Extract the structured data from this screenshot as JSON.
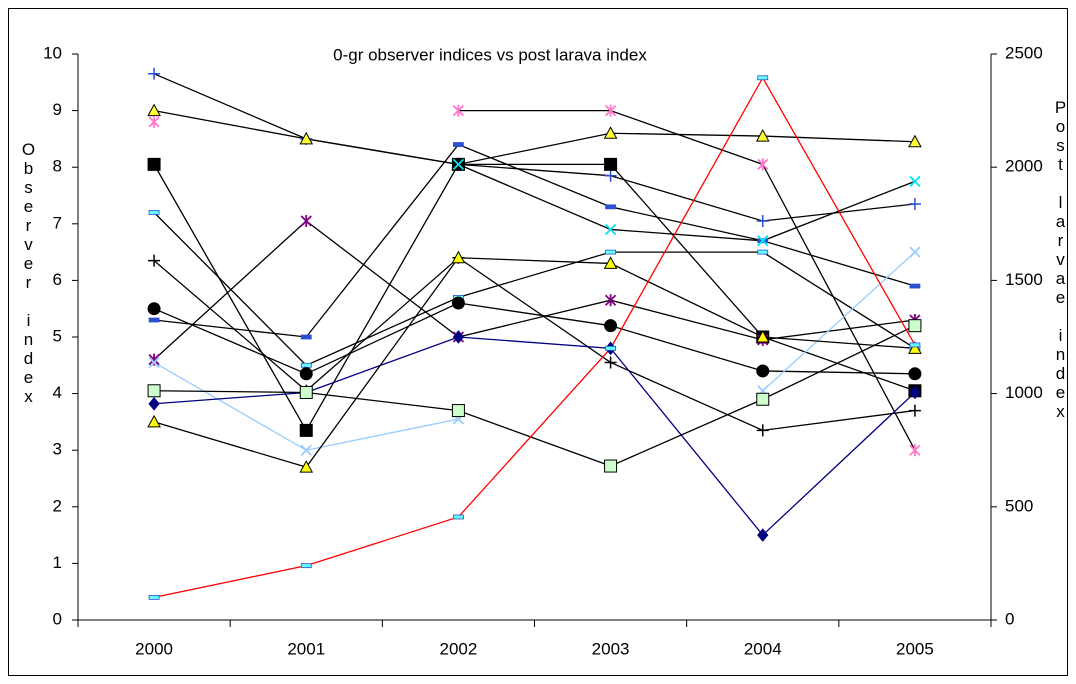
{
  "chart_data": {
    "type": "line",
    "title": "0-gr observer indices vs post larava index",
    "y_label": "Observer index",
    "y2_label": "Post larvae index",
    "categories": [
      "2000",
      "2001",
      "2002",
      "2003",
      "2004",
      "2005"
    ],
    "ylim": [
      0,
      10
    ],
    "yticks": [
      0,
      1,
      2,
      3,
      4,
      5,
      6,
      7,
      8,
      9,
      10
    ],
    "y2lim": [
      0,
      2500
    ],
    "y2ticks": [
      0,
      500,
      1000,
      1500,
      2000,
      2500
    ],
    "grid": false,
    "series": [
      {
        "color": "#2b4fd0",
        "line_color": "#000000",
        "marker": "plus",
        "values": [
          9.65,
          8.5,
          8.05,
          7.85,
          7.05,
          7.35
        ]
      },
      {
        "color": "#ffff33",
        "line_color": "#000000",
        "marker": "triangle",
        "values": [
          9.0,
          8.5,
          8.05,
          8.6,
          8.55,
          8.45
        ]
      },
      {
        "color": "#ff77cc",
        "line_color": "#000000",
        "marker": "star",
        "values": [
          8.8,
          null,
          9.0,
          9.0,
          8.05,
          3.0
        ]
      },
      {
        "color": "#000000",
        "line_color": "#000000",
        "marker": "square",
        "values": [
          8.05,
          3.35,
          8.05,
          8.05,
          5.0,
          4.05
        ]
      },
      {
        "color": "#66ffff",
        "line_color": "#000000",
        "marker": "dash",
        "values": [
          7.2,
          4.5,
          5.7,
          6.5,
          6.5,
          4.8
        ]
      },
      {
        "color": "#800080",
        "line_color": "#000000",
        "marker": "star",
        "values": [
          4.6,
          7.05,
          5.0,
          5.65,
          4.95,
          5.3
        ]
      },
      {
        "color": "#000000",
        "line_color": "#000000",
        "marker": "plus",
        "values": [
          6.35,
          4.05,
          6.4,
          4.55,
          3.35,
          3.7
        ]
      },
      {
        "color": "#000000",
        "line_color": "#000000",
        "marker": "circle",
        "values": [
          5.5,
          4.35,
          5.6,
          5.2,
          4.4,
          4.35
        ]
      },
      {
        "color": "#2b4fd0",
        "line_color": "#000000",
        "marker": "dash",
        "values": [
          5.3,
          5.0,
          8.4,
          7.3,
          6.7,
          5.9
        ]
      },
      {
        "color": "#99ccff",
        "line_color": "#99ccff",
        "marker": "x",
        "values": [
          4.55,
          3.0,
          3.55,
          null,
          4.05,
          6.5
        ]
      },
      {
        "color": "#00e5ee",
        "line_color": "#000000",
        "marker": "x",
        "values": [
          null,
          null,
          8.05,
          6.9,
          6.7,
          7.75
        ]
      },
      {
        "color": "#000080",
        "line_color": "#000080",
        "marker": "diamond",
        "values": [
          3.82,
          4.02,
          5.0,
          4.8,
          1.5,
          4.02
        ]
      },
      {
        "color": "#ccffcc",
        "line_color": "#000000",
        "marker": "square",
        "values": [
          4.05,
          4.02,
          3.7,
          2.72,
          3.9,
          5.2
        ]
      },
      {
        "color": "#ffff00",
        "line_color": "#000000",
        "marker": "triangle",
        "values": [
          3.5,
          2.7,
          6.4,
          6.3,
          5.0,
          4.8
        ]
      },
      {
        "color": "#66ffff",
        "line_color": "#ff0000",
        "marker": "dash",
        "axis": "y2",
        "values": [
          100,
          240,
          455,
          1200,
          2395,
          1215
        ]
      }
    ]
  }
}
